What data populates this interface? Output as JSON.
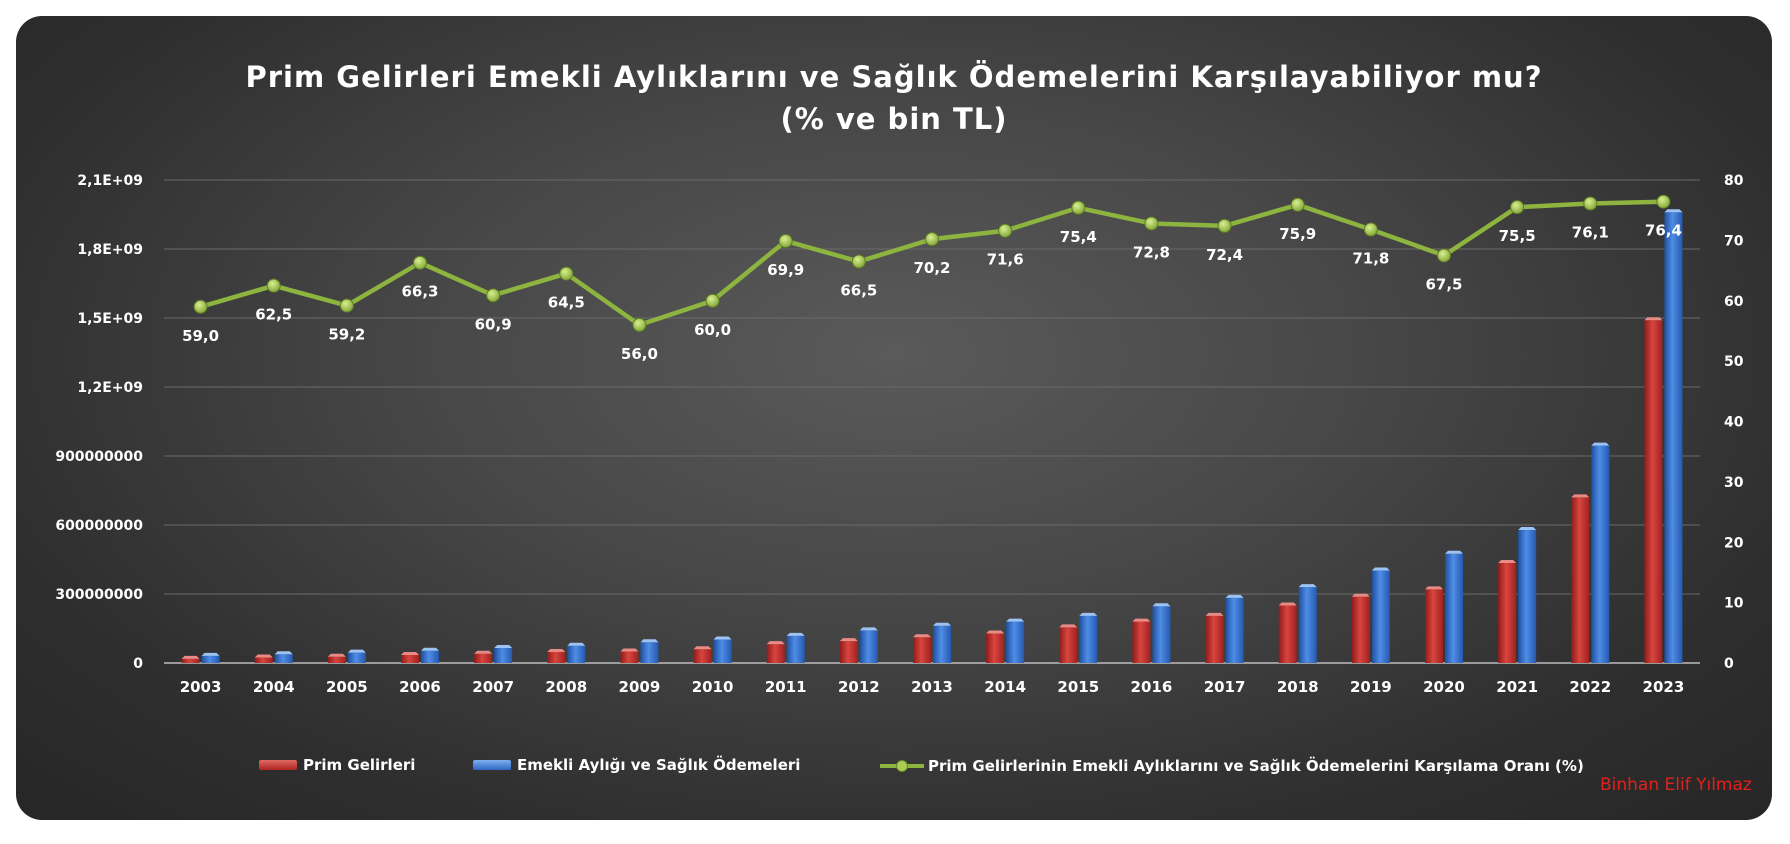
{
  "title": {
    "line1": "Prim Gelirleri Emekli Aylıklarını ve Sağlık Ödemelerini Karşılayabiliyor mu?",
    "line2": "(% ve bin TL)"
  },
  "legend": {
    "prim": "Prim Gelirleri",
    "emekli": "Emekli Aylığı  ve Sağlık Ödemeleri",
    "oran": "Prim Gelirlerinin Emekli Aylıklarını ve Sağlık Ödemelerini Karşılama Oranı (%)"
  },
  "credit": "Binhan Elif Yılmaz",
  "colors": {
    "prim": "#c0302e",
    "emekli": "#3a77d2",
    "oran": "#8db43e",
    "grid": "#6a6a6a",
    "text": "#ffffff"
  },
  "chart_data": {
    "type": "bar",
    "categories": [
      "2003",
      "2004",
      "2005",
      "2006",
      "2007",
      "2008",
      "2009",
      "2010",
      "2011",
      "2012",
      "2013",
      "2014",
      "2015",
      "2016",
      "2017",
      "2018",
      "2019",
      "2020",
      "2021",
      "2022",
      "2023"
    ],
    "left_axis": {
      "min": 0,
      "max": 2100000000,
      "ticks": [
        0,
        300000000,
        600000000,
        900000000,
        1200000000,
        1500000000,
        1800000000,
        2100000000
      ],
      "tick_labels": [
        "0",
        "300000000",
        "600000000",
        "900000000",
        "1,2E+09",
        "1,5E+09",
        "1,8E+09",
        "2,1E+09"
      ]
    },
    "right_axis": {
      "min": 0,
      "max": 80,
      "ticks": [
        0,
        10,
        20,
        30,
        40,
        50,
        60,
        70,
        80
      ],
      "tick_labels": [
        "0",
        "10",
        "20",
        "30",
        "40",
        "50",
        "60",
        "70",
        "80"
      ]
    },
    "series": [
      {
        "name": "Prim Gelirleri",
        "type": "bar",
        "axis": "left",
        "values": [
          18000000,
          24000000,
          27000000,
          35000000,
          40000000,
          48000000,
          50000000,
          60000000,
          82000000,
          95000000,
          112000000,
          128000000,
          155000000,
          180000000,
          205000000,
          250000000,
          288000000,
          320000000,
          435000000,
          720000000,
          1490000000
        ]
      },
      {
        "name": "Emekli Aylığı  ve Sağlık Ödemeleri",
        "type": "bar",
        "axis": "left",
        "values": [
          31000000,
          38000000,
          45000000,
          53000000,
          65000000,
          75000000,
          90000000,
          102000000,
          118000000,
          142000000,
          162000000,
          180000000,
          205000000,
          247000000,
          283000000,
          330000000,
          402000000,
          475000000,
          578000000,
          945000000,
          1960000000
        ]
      },
      {
        "name": "Prim Gelirlerinin Emekli Aylıklarını ve Sağlık Ödemelerini Karşılama Oranı (%)",
        "type": "line",
        "axis": "right",
        "values": [
          59.0,
          62.5,
          59.2,
          66.3,
          60.9,
          64.5,
          56.0,
          60.0,
          69.9,
          66.5,
          70.2,
          71.6,
          75.4,
          72.8,
          72.4,
          75.9,
          71.8,
          67.5,
          75.5,
          76.1,
          76.4
        ],
        "labels": [
          "59,0",
          "62,5",
          "59,2",
          "66,3",
          "60,9",
          "64,5",
          "56,0",
          "60,0",
          "69,9",
          "66,5",
          "70,2",
          "71,6",
          "75,4",
          "72,8",
          "72,4",
          "75,9",
          "71,8",
          "67,5",
          "75,5",
          "76,1",
          "76,4"
        ]
      }
    ],
    "grid": true,
    "legend_position": "bottom"
  }
}
